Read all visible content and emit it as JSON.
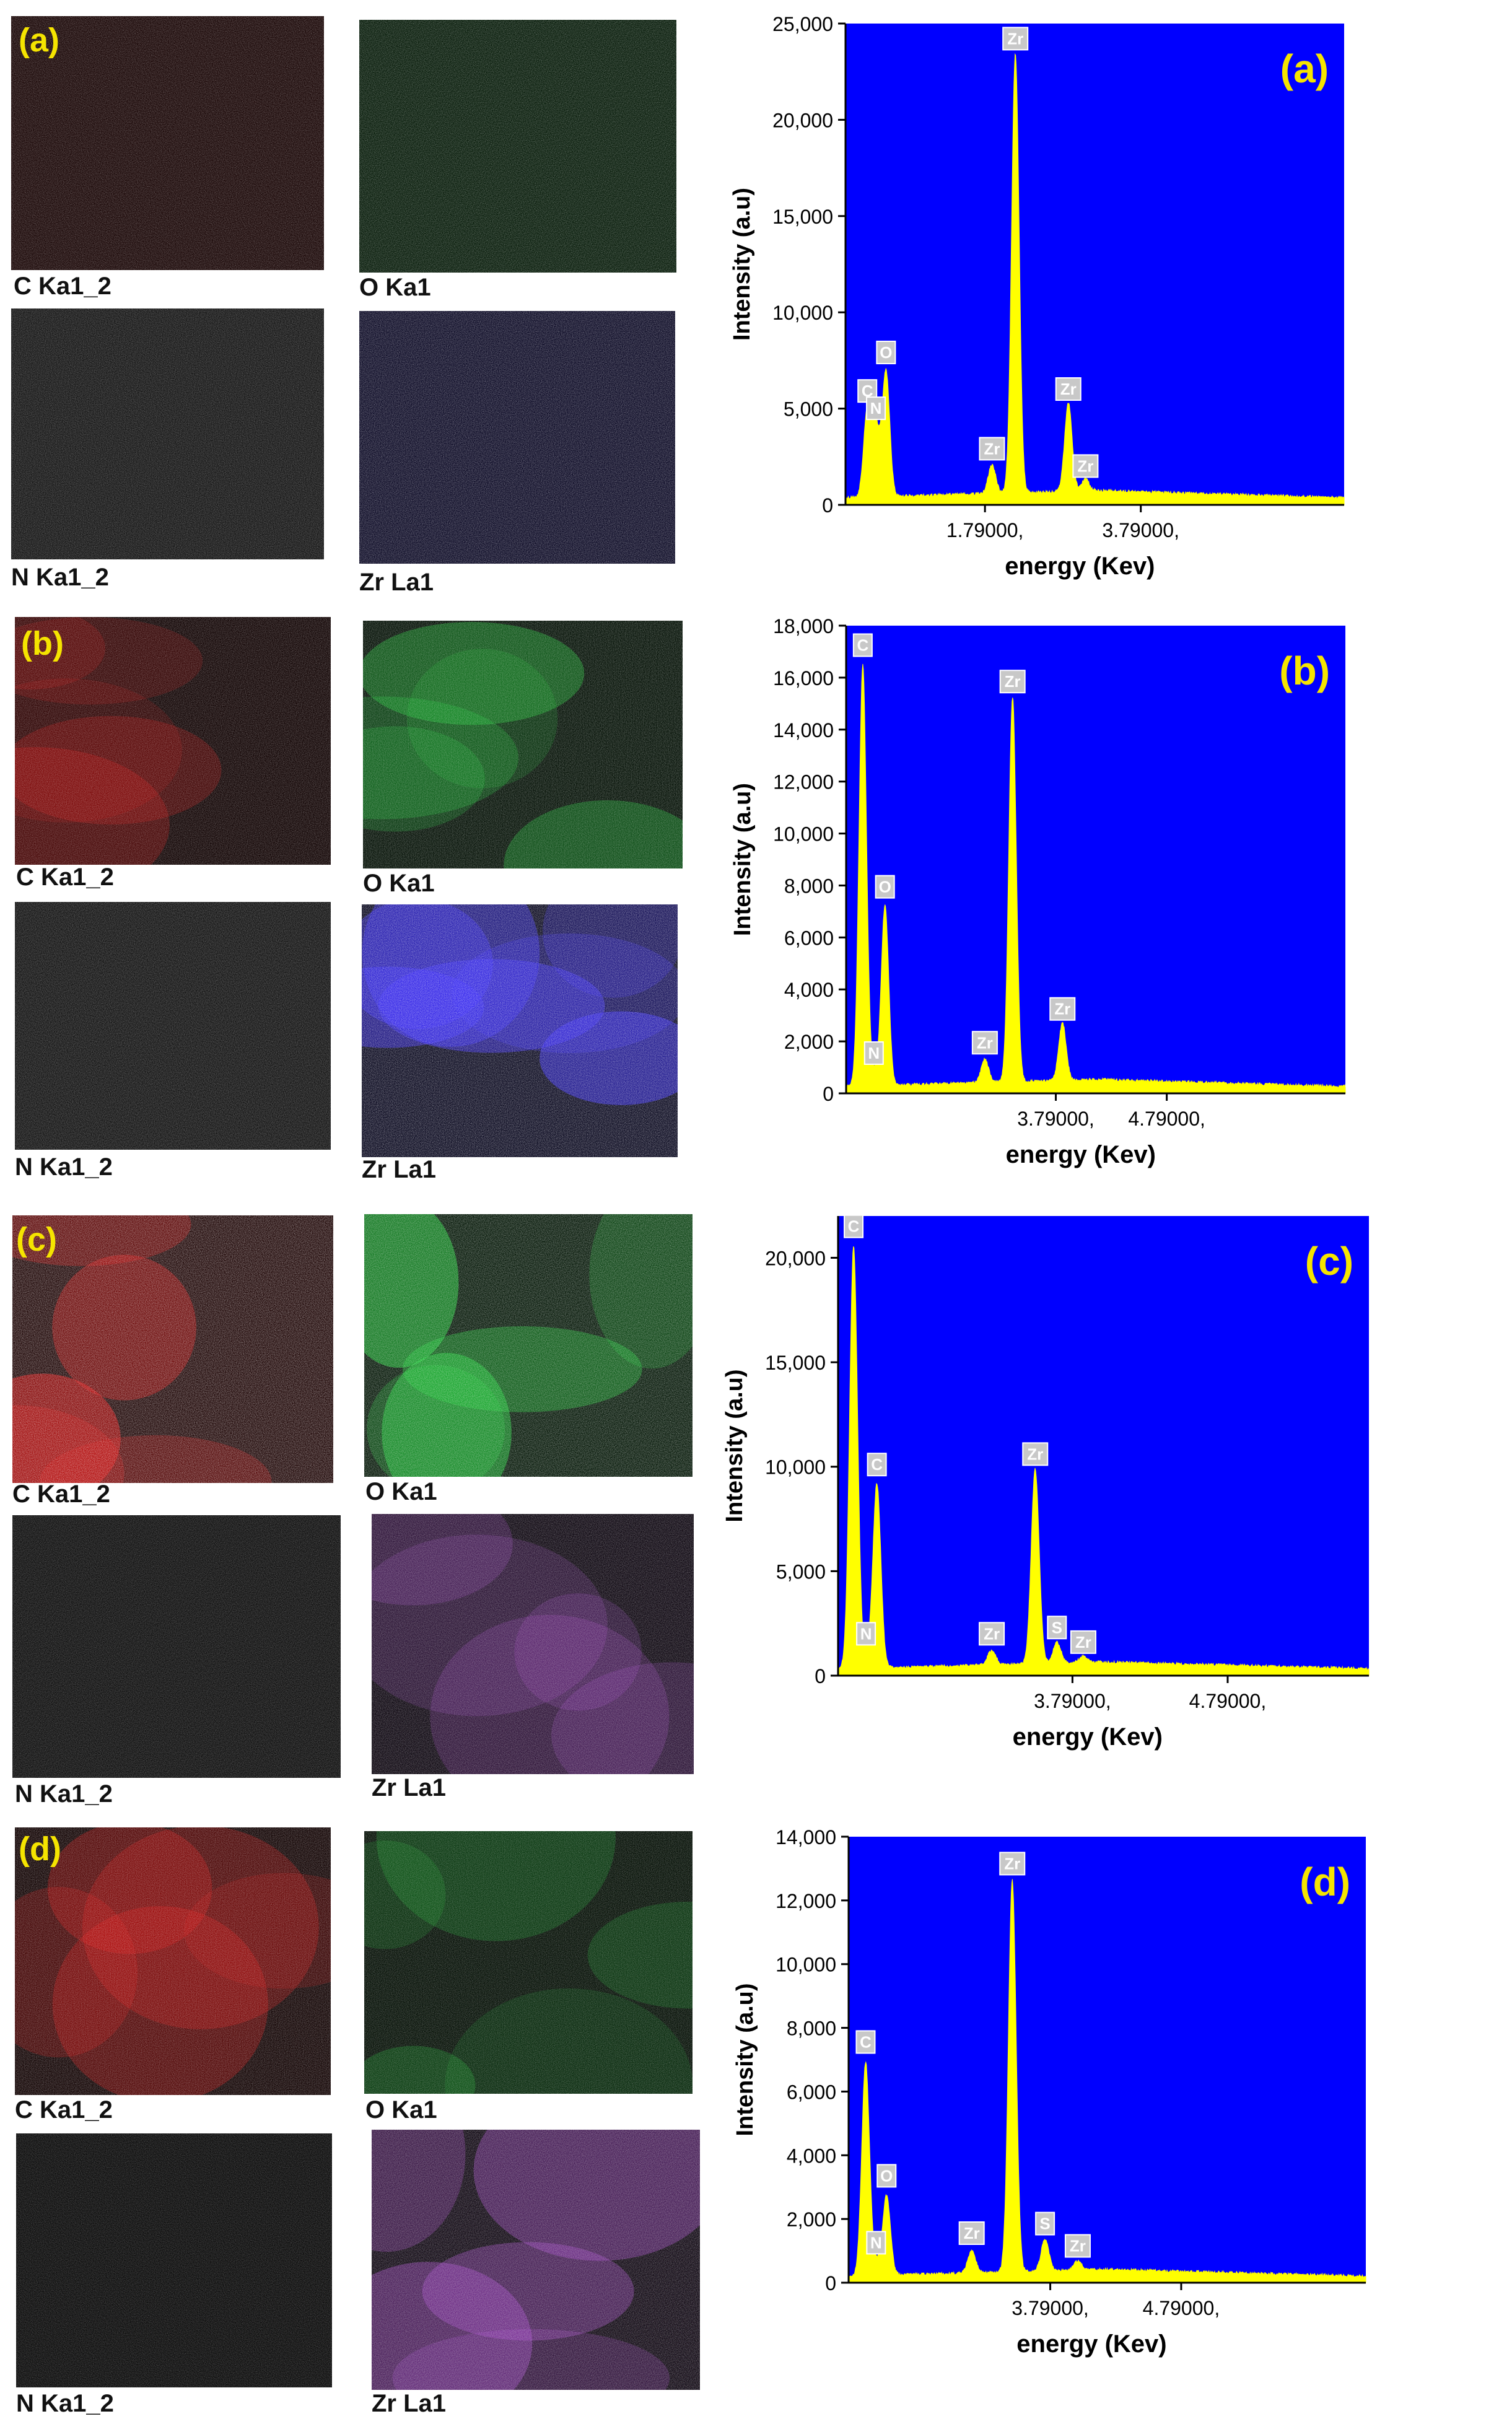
{
  "colors": {
    "carbon": "#e01010",
    "oxygen": "#1fd83a",
    "nitrogen": "#c8c8c8",
    "zirconium_blue": "#3a2bff",
    "zirconium_purple": "#b04bd8",
    "spectrum": "#ffff00",
    "plot_bg": "#0000ff",
    "panel_label": "#f5e400",
    "peak_label_bg": "#c8c8c8"
  },
  "map_labels": {
    "c": "C Ka1_2",
    "o": "O Ka1",
    "n": "N Ka1_2",
    "zr": "Zr La1"
  },
  "panels": [
    {
      "label": "(a)"
    },
    {
      "label": "(b)"
    },
    {
      "label": "(c)"
    },
    {
      "label": "(d)"
    }
  ],
  "chart_data": [
    {
      "type": "line",
      "panel_label": "(a)",
      "xlabel": "energy (Kev)",
      "ylabel": "Intensity (a.u)",
      "xlim": [
        0,
        6.4
      ],
      "ylim": [
        0,
        25000
      ],
      "yticks": [
        0,
        5000,
        10000,
        15000,
        20000,
        25000
      ],
      "ytick_labels": [
        "0",
        "5,000",
        "10,000",
        "15,000",
        "20,000",
        "25,000"
      ],
      "xticks": [
        1.79,
        3.79
      ],
      "xtick_labels": [
        "1.79000,",
        "3.79000,"
      ],
      "peaks": [
        {
          "label": "C",
          "x": 0.28,
          "y": 4500
        },
        {
          "label": "N",
          "x": 0.39,
          "y": 3600
        },
        {
          "label": "O",
          "x": 0.52,
          "y": 6500
        },
        {
          "label": "Zr",
          "x": 1.88,
          "y": 1500
        },
        {
          "label": "Zr",
          "x": 2.18,
          "y": 22800
        },
        {
          "label": "Zr",
          "x": 2.86,
          "y": 4600
        },
        {
          "label": "Zr",
          "x": 3.08,
          "y": 600
        }
      ]
    },
    {
      "type": "line",
      "panel_label": "(b)",
      "xlabel": "energy (Kev)",
      "ylabel": "Intensity (a.u)",
      "xlim": [
        1.9,
        6.4
      ],
      "ylim": [
        0,
        18000
      ],
      "yticks": [
        0,
        2000,
        4000,
        6000,
        8000,
        10000,
        12000,
        14000,
        16000,
        18000
      ],
      "ytick_labels": [
        "0",
        "2,000",
        "4,000",
        "6,000",
        "8,000",
        "10,000",
        "12,000",
        "14,000",
        "16,000",
        "18,000"
      ],
      "xticks": [
        3.79,
        4.79
      ],
      "xtick_labels": [
        "3.79000,",
        "4.79000,"
      ],
      "peaks": [
        {
          "label": "C",
          "x": 2.05,
          "y": 16200
        },
        {
          "label": "N",
          "x": 2.15,
          "y": 500
        },
        {
          "label": "O",
          "x": 2.25,
          "y": 6900
        },
        {
          "label": "Zr",
          "x": 3.15,
          "y": 900
        },
        {
          "label": "Zr",
          "x": 3.4,
          "y": 14800
        },
        {
          "label": "Zr",
          "x": 3.85,
          "y": 2200
        }
      ]
    },
    {
      "type": "line",
      "panel_label": "(c)",
      "xlabel": "energy (Kev)",
      "ylabel": "Intensity (a.u)",
      "xlim": [
        2.28,
        5.7
      ],
      "ylim": [
        0,
        22000
      ],
      "yticks": [
        0,
        5000,
        10000,
        15000,
        20000
      ],
      "ytick_labels": [
        "0",
        "5,000",
        "10,000",
        "15,000",
        "20,000"
      ],
      "xticks": [
        3.79,
        4.79
      ],
      "xtick_labels": [
        "3.79000,",
        "4.79000,"
      ],
      "peaks": [
        {
          "label": "C",
          "x": 2.38,
          "y": 20200
        },
        {
          "label": "N",
          "x": 2.46,
          "y": 700
        },
        {
          "label": "C",
          "x": 2.53,
          "y": 8800
        },
        {
          "label": "Zr",
          "x": 3.27,
          "y": 700
        },
        {
          "label": "Zr",
          "x": 3.55,
          "y": 9300
        },
        {
          "label": "S",
          "x": 3.69,
          "y": 1000
        },
        {
          "label": "Zr",
          "x": 3.86,
          "y": 300
        }
      ]
    },
    {
      "type": "line",
      "panel_label": "(d)",
      "xlabel": "energy (Kev)",
      "ylabel": "Intensity (a.u)",
      "xlim": [
        2.25,
        6.2
      ],
      "ylim": [
        0,
        14000
      ],
      "yticks": [
        0,
        2000,
        4000,
        6000,
        8000,
        10000,
        12000,
        14000
      ],
      "ytick_labels": [
        "0",
        "2,000",
        "4,000",
        "6,000",
        "8,000",
        "10,000",
        "12,000",
        "14,000"
      ],
      "xticks": [
        3.79,
        4.79
      ],
      "xtick_labels": [
        "3.79000,",
        "4.79000,"
      ],
      "peaks": [
        {
          "label": "C",
          "x": 2.38,
          "y": 6700
        },
        {
          "label": "N",
          "x": 2.46,
          "y": 400
        },
        {
          "label": "O",
          "x": 2.54,
          "y": 2500
        },
        {
          "label": "Zr",
          "x": 3.19,
          "y": 700
        },
        {
          "label": "Zr",
          "x": 3.5,
          "y": 12300
        },
        {
          "label": "S",
          "x": 3.75,
          "y": 1000
        },
        {
          "label": "Zr",
          "x": 4.0,
          "y": 300
        }
      ]
    }
  ]
}
